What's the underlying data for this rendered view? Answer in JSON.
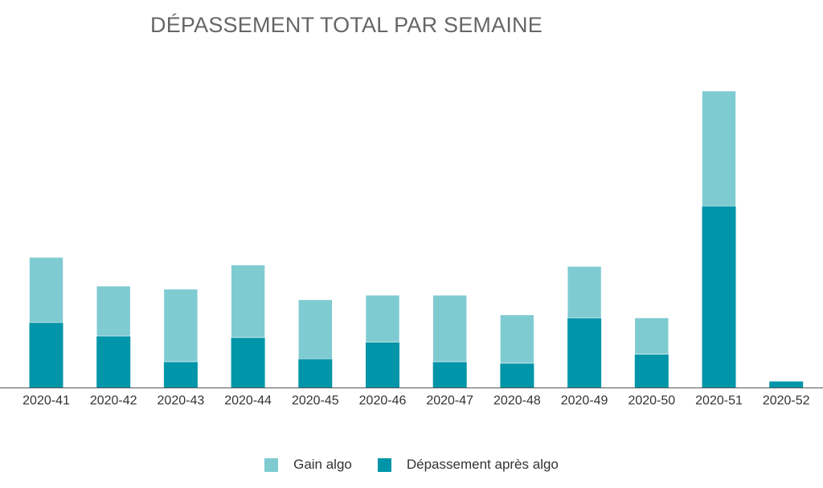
{
  "chart_data": {
    "type": "bar",
    "stacked": true,
    "title": "DÉPASSEMENT TOTAL PAR SEMAINE",
    "categories": [
      "2020-41",
      "2020-42",
      "2020-43",
      "2020-44",
      "2020-45",
      "2020-46",
      "2020-47",
      "2020-48",
      "2020-49",
      "2020-50",
      "2020-51",
      "2020-52"
    ],
    "series": [
      {
        "name": "Dépassement après algo",
        "color": "#0095a8",
        "values": [
          21.5,
          17,
          8.5,
          16.5,
          9.5,
          15,
          8.5,
          8,
          23,
          11,
          60,
          2
        ]
      },
      {
        "name": "Gain algo",
        "color": "#7fcbd2",
        "values": [
          21.5,
          16.5,
          24,
          24,
          19.5,
          15.5,
          22,
          16,
          17,
          12,
          38,
          0
        ]
      }
    ],
    "ylim": [
      0,
      110
    ],
    "grid": false,
    "legend_position": "bottom"
  }
}
